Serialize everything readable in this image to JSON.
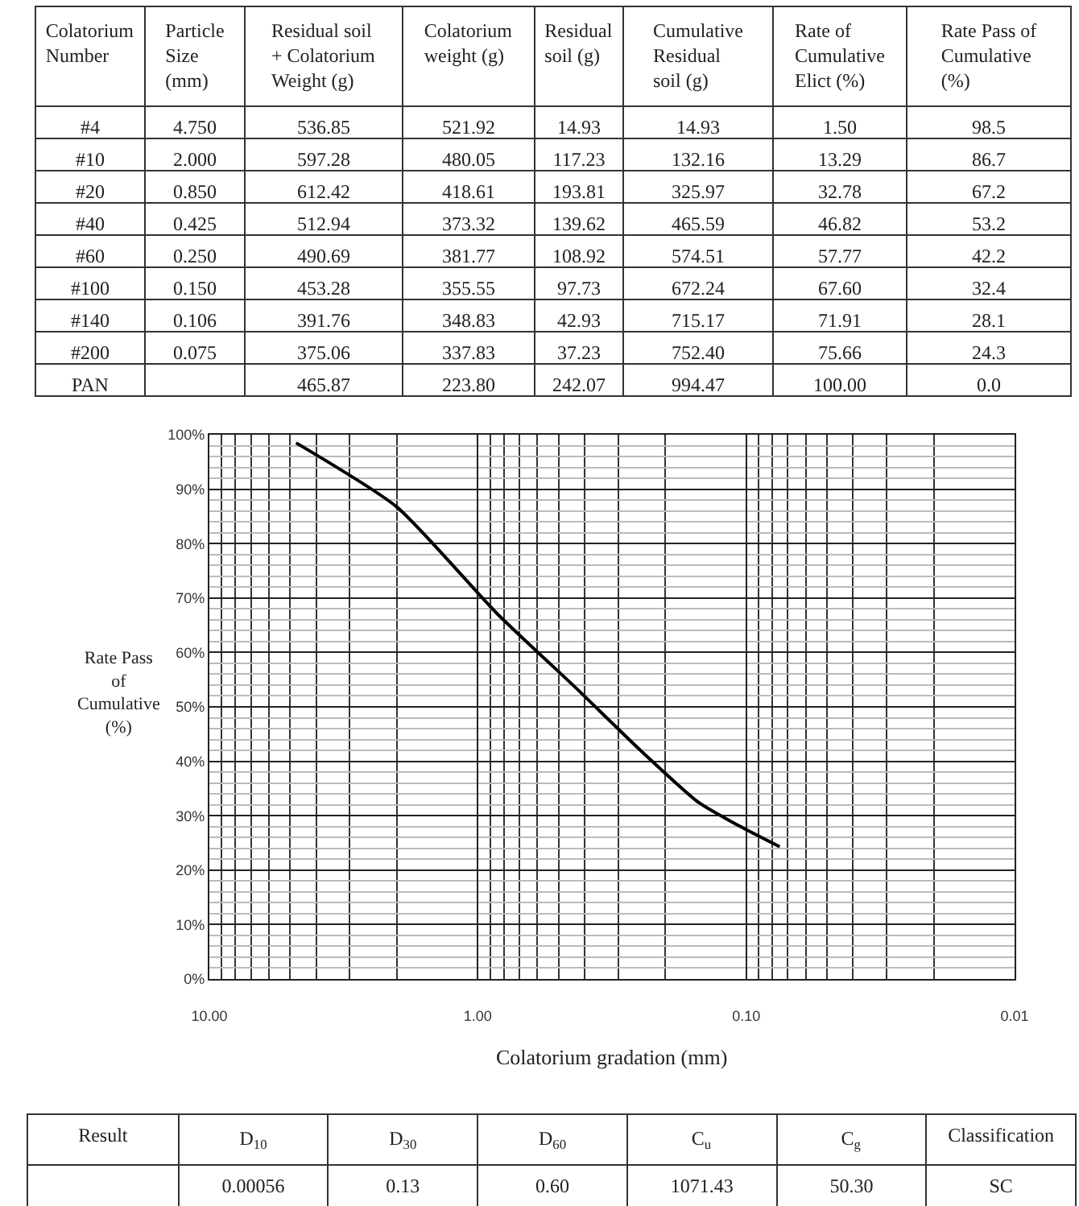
{
  "chart_data": [
    {
      "type": "other",
      "categories": [
        "Colatorium\nNumber",
        "Particle\nSize\n(mm)",
        "Residual soil\n+ Colatorium\nWeight (g)",
        "Colatorium\nweight (g)",
        "Residual\nsoil (g)",
        "Cumulative\nResidual\nsoil (g)",
        "Rate of\nCumulative\nElict (%)",
        "Rate Pass of\nCumulative\n(%)"
      ],
      "cell_labels": [
        [
          "#4",
          "4.750",
          "536.85",
          "521.92",
          "14.93",
          "14.93",
          "1.50",
          "98.5"
        ],
        [
          "#10",
          "2.000",
          "597.28",
          "480.05",
          "117.23",
          "132.16",
          "13.29",
          "86.7"
        ],
        [
          "#20",
          "0.850",
          "612.42",
          "418.61",
          "193.81",
          "325.97",
          "32.78",
          "67.2"
        ],
        [
          "#40",
          "0.425",
          "512.94",
          "373.32",
          "139.62",
          "465.59",
          "46.82",
          "53.2"
        ],
        [
          "#60",
          "0.250",
          "490.69",
          "381.77",
          "108.92",
          "574.51",
          "57.77",
          "42.2"
        ],
        [
          "#100",
          "0.150",
          "453.28",
          "355.55",
          "97.73",
          "672.24",
          "67.60",
          "32.4"
        ],
        [
          "#140",
          "0.106",
          "391.76",
          "348.83",
          "42.93",
          "715.17",
          "71.91",
          "28.1"
        ],
        [
          "#200",
          "0.075",
          "375.06",
          "337.83",
          "37.23",
          "752.40",
          "75.66",
          "24.3"
        ],
        [
          "PAN",
          null,
          "465.87",
          "223.80",
          "242.07",
          "994.47",
          "100.00",
          "0.0"
        ]
      ]
    },
    {
      "type": "line",
      "x": [
        4.75,
        2.0,
        0.85,
        0.425,
        0.25,
        0.15,
        0.106,
        0.075
      ],
      "values": [
        98.5,
        86.7,
        67.2,
        53.2,
        42.2,
        32.4,
        28.1,
        24.3
      ],
      "color": "#000000",
      "log": "x",
      "xlim": [
        10,
        0.01
      ],
      "xticks": [
        {
          "value": 10,
          "label": "10.00"
        },
        {
          "value": 1,
          "label": "1.00"
        },
        {
          "value": 0.1,
          "label": "0.10"
        },
        {
          "value": 0.01,
          "label": "0.01"
        }
      ],
      "ylim": [
        0,
        100
      ],
      "yticks": [
        {
          "value": 0,
          "label": "0%"
        },
        {
          "value": 10,
          "label": "10%"
        },
        {
          "value": 20,
          "label": "20%"
        },
        {
          "value": 30,
          "label": "30%"
        },
        {
          "value": 40,
          "label": "40%"
        },
        {
          "value": 50,
          "label": "50%"
        },
        {
          "value": 60,
          "label": "60%"
        },
        {
          "value": 70,
          "label": "70%"
        },
        {
          "value": 80,
          "label": "80%"
        },
        {
          "value": 90,
          "label": "90%"
        },
        {
          "value": 100,
          "label": "100%"
        }
      ],
      "grid": true,
      "marker": "none",
      "line_style": "solid",
      "ylabel": "Rate Pass\nof\nCumulative\n(%)",
      "xlabel": "Colatorium gradation (mm)"
    },
    {
      "type": "other",
      "y_categories": [
        "Result"
      ],
      "categories": [
        "D$_{10}$",
        "D$_{30}$",
        "D$_{60}$",
        "C$_{u}$",
        "C$_{g}$",
        "Classification"
      ],
      "cell_labels": [
        [
          "0.00056",
          "0.13",
          "0.60",
          "1071.43",
          "50.30",
          "SC"
        ]
      ]
    }
  ]
}
